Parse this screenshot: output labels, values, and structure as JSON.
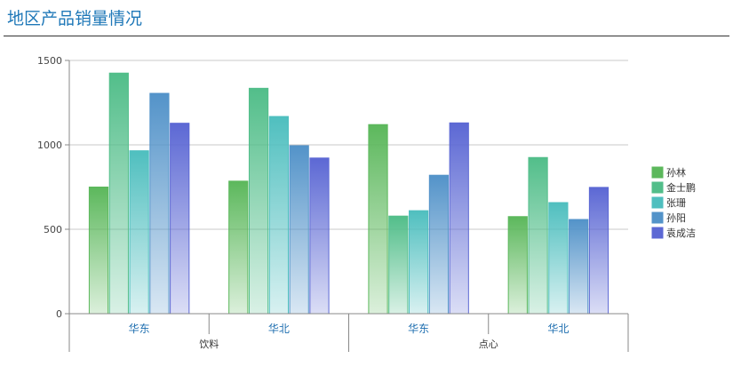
{
  "chart_data": {
    "type": "bar",
    "title": "地区产品销量情况",
    "groups": [
      {
        "name": "饮料",
        "categories": [
          "华东",
          "华北"
        ]
      },
      {
        "name": "点心",
        "categories": [
          "华东",
          "华北"
        ]
      }
    ],
    "categories": [
      "华东",
      "华北",
      "华东",
      "华北"
    ],
    "series": [
      {
        "name": "孙林",
        "color": "#5cb85c",
        "values": [
          750,
          785,
          1120,
          575
        ]
      },
      {
        "name": "金士鹏",
        "color": "#52be8a",
        "values": [
          1425,
          1335,
          578,
          925
        ]
      },
      {
        "name": "张珊",
        "color": "#4fbfbf",
        "values": [
          965,
          1168,
          610,
          658
        ]
      },
      {
        "name": "孙阳",
        "color": "#5393c9",
        "values": [
          1305,
          995,
          820,
          558
        ]
      },
      {
        "name": "袁成洁",
        "color": "#5c68d4",
        "values": [
          1128,
          922,
          1130,
          748
        ]
      }
    ],
    "y_ticks": [
      "0",
      "500",
      "1000",
      "1500"
    ],
    "ylim": [
      0,
      1500
    ],
    "grid": true,
    "legend_position": "right"
  }
}
